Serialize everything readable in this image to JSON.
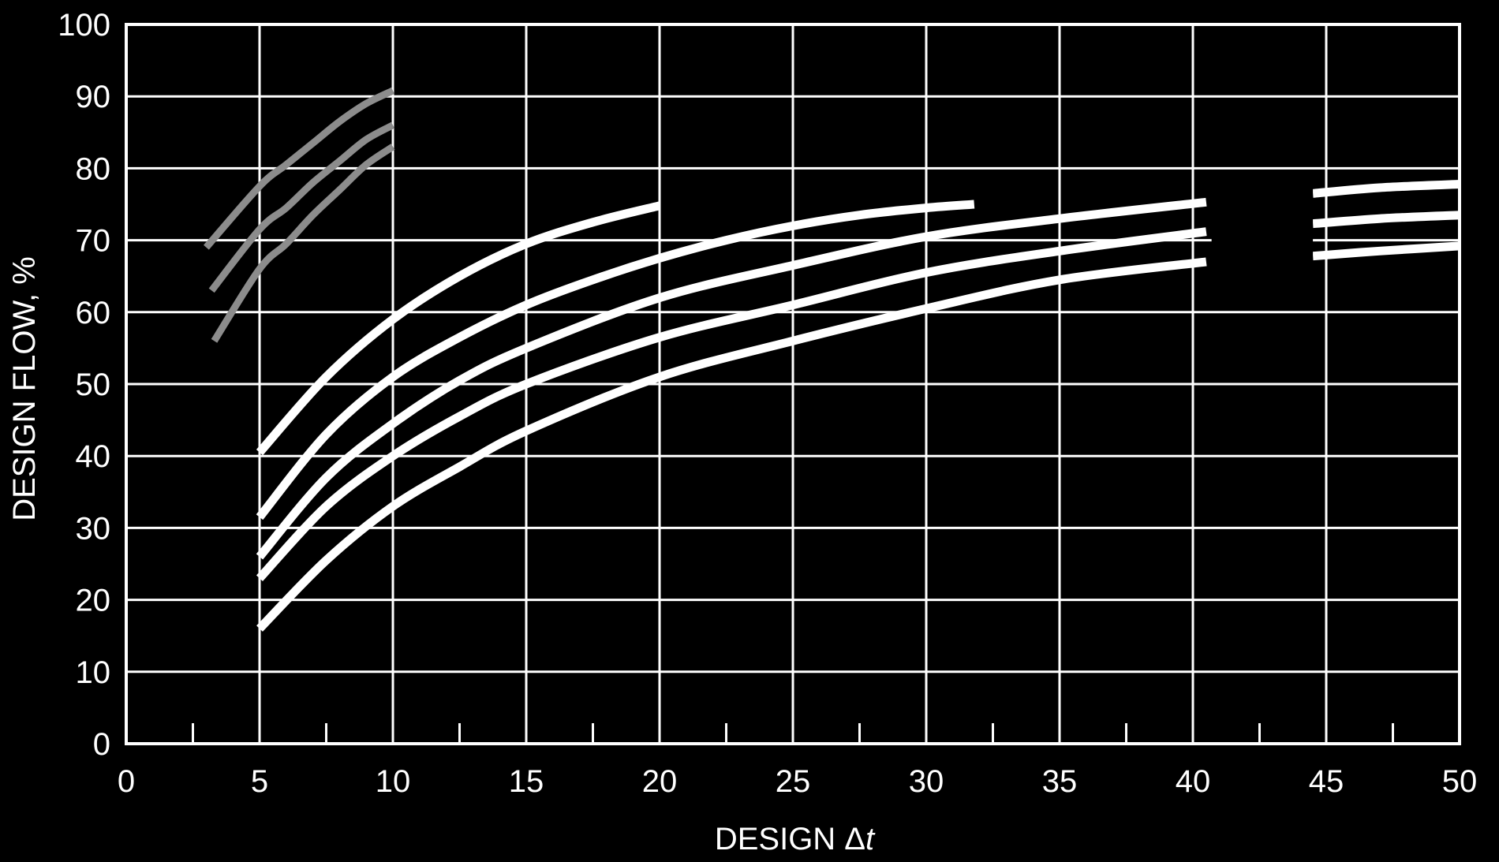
{
  "chart_data": {
    "type": "line",
    "title": "",
    "xlabel_prefix": "DESIGN Δ",
    "xlabel_italic": "t",
    "ylabel": "DESIGN FLOW, %",
    "xlim": [
      0,
      50
    ],
    "ylim": [
      0,
      100
    ],
    "xticks": [
      "0",
      "5",
      "10",
      "15",
      "20",
      "25",
      "30",
      "35",
      "40",
      "45",
      "50"
    ],
    "yticks": [
      "0",
      "10",
      "20",
      "30",
      "40",
      "50",
      "60",
      "70",
      "80",
      "90",
      "100"
    ],
    "grid": true,
    "legend": "none",
    "colors": {
      "background": "#000000",
      "foreground": "#ffffff",
      "gray_curves": "#8c8c8c"
    },
    "series": [
      {
        "color": "gray",
        "points": [
          [
            3,
            69
          ],
          [
            5,
            77.5
          ],
          [
            6,
            80.5
          ],
          [
            7,
            83.5
          ],
          [
            8,
            86.5
          ],
          [
            9,
            89
          ],
          [
            10,
            90.8
          ]
        ]
      },
      {
        "color": "gray",
        "points": [
          [
            3.2,
            63
          ],
          [
            5,
            71.5
          ],
          [
            6,
            74.5
          ],
          [
            7,
            78
          ],
          [
            8,
            81
          ],
          [
            9,
            84
          ],
          [
            10,
            86
          ]
        ]
      },
      {
        "color": "gray",
        "points": [
          [
            3.3,
            56
          ],
          [
            5,
            66
          ],
          [
            6,
            69.5
          ],
          [
            7,
            73.5
          ],
          [
            8,
            77
          ],
          [
            9,
            80.5
          ],
          [
            10,
            83
          ]
        ]
      },
      {
        "color": "white",
        "points": [
          [
            5,
            40.5
          ],
          [
            7.5,
            51
          ],
          [
            10,
            59
          ],
          [
            12.5,
            65
          ],
          [
            15,
            69.5
          ],
          [
            17.5,
            72.5
          ],
          [
            20,
            74.8
          ]
        ]
      },
      {
        "color": "white",
        "points": [
          [
            5,
            31.5
          ],
          [
            7.5,
            43
          ],
          [
            10,
            51
          ],
          [
            12.5,
            56.5
          ],
          [
            15,
            61
          ],
          [
            17.5,
            64.5
          ],
          [
            20,
            67.5
          ],
          [
            22.5,
            70
          ],
          [
            25,
            72
          ],
          [
            27.5,
            73.5
          ],
          [
            30,
            74.5
          ],
          [
            31.8,
            75
          ]
        ]
      },
      {
        "color": "white",
        "points": [
          [
            5,
            26
          ],
          [
            7.5,
            37
          ],
          [
            10,
            44.5
          ],
          [
            12.5,
            50.5
          ],
          [
            15,
            55
          ],
          [
            20,
            62
          ],
          [
            25,
            66.5
          ],
          [
            30,
            70.5
          ],
          [
            35,
            73
          ],
          [
            40.5,
            75.3
          ]
        ]
      },
      {
        "color": "white",
        "points": [
          [
            5,
            23
          ],
          [
            7.5,
            33
          ],
          [
            10,
            40
          ],
          [
            12.5,
            45.5
          ],
          [
            15,
            50
          ],
          [
            20,
            56.5
          ],
          [
            25,
            61
          ],
          [
            30,
            65.5
          ],
          [
            35,
            68.5
          ],
          [
            40.5,
            71.2
          ]
        ]
      },
      {
        "color": "white",
        "points": [
          [
            5,
            16
          ],
          [
            7.5,
            25.5
          ],
          [
            10,
            33
          ],
          [
            12.5,
            38.5
          ],
          [
            15,
            43.5
          ],
          [
            20,
            51
          ],
          [
            25,
            56
          ],
          [
            30,
            60.5
          ],
          [
            35,
            64.5
          ],
          [
            40.5,
            67
          ]
        ]
      },
      {
        "color": "white",
        "points": [
          [
            44.5,
            76.5
          ],
          [
            47,
            77.3
          ],
          [
            50,
            77.8
          ]
        ]
      },
      {
        "color": "white",
        "points": [
          [
            44.5,
            72.3
          ],
          [
            47,
            73
          ],
          [
            50,
            73.5
          ]
        ]
      },
      {
        "color": "white",
        "points": [
          [
            44.5,
            67.8
          ],
          [
            47,
            68.5
          ],
          [
            50,
            69.2
          ]
        ]
      }
    ]
  }
}
